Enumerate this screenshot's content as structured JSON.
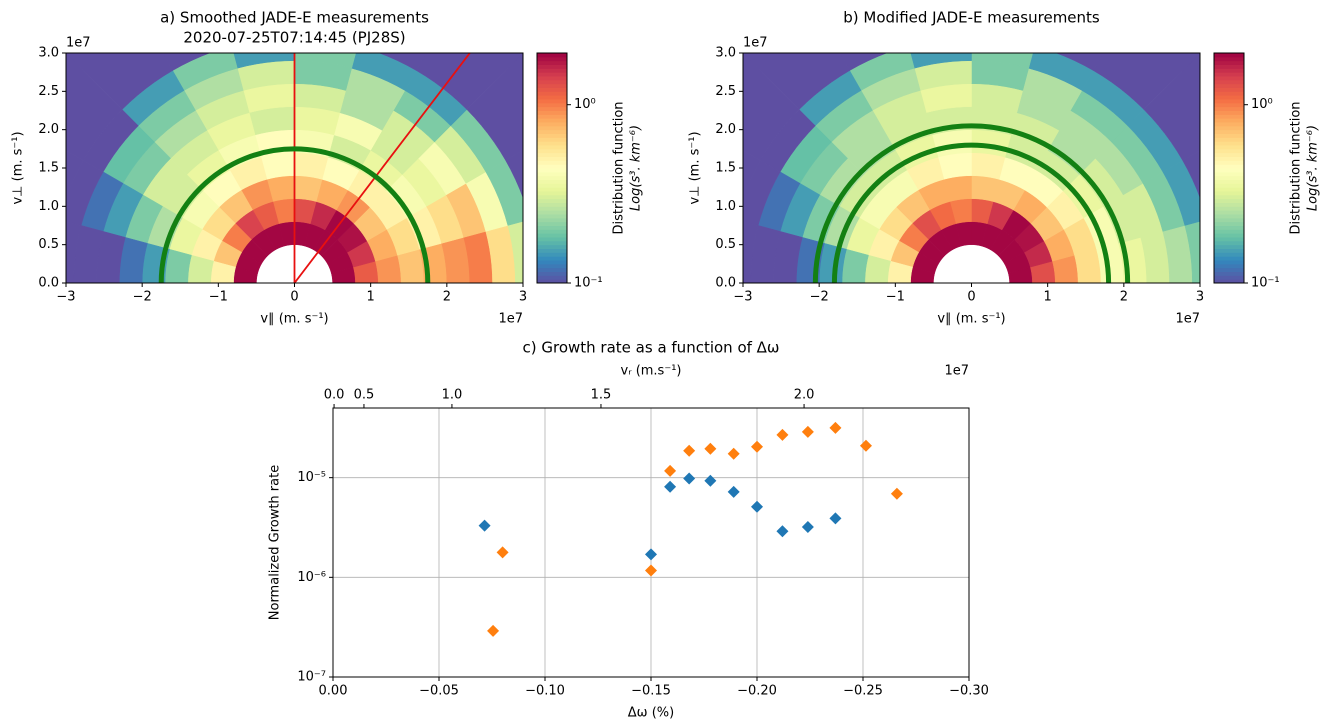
{
  "chart_data": [
    {
      "type": "polar-heatmap",
      "title": "a) Smoothed JADE-E measurements",
      "subtitle": "2020-07-25T07:14:45 (PJ28S)",
      "xlabel": "v∥ (m. s⁻¹)",
      "ylabel": "v⊥ (m. s⁻¹)",
      "x_offset_label": "1e7",
      "y_offset_label": "1e7",
      "xlim": [
        -3,
        3
      ],
      "ylim": [
        0,
        3
      ],
      "xticks": [
        {
          "value": -3,
          "label": "−3"
        },
        {
          "value": -2,
          "label": "−2"
        },
        {
          "value": -1,
          "label": "−1"
        },
        0,
        1,
        2,
        3
      ],
      "yticks": [
        {
          "value": 0,
          "label": "0.0"
        },
        {
          "value": 0.5,
          "label": "0.5"
        },
        {
          "value": 1,
          "label": "1.0"
        },
        {
          "value": 1.5,
          "label": "1.5"
        },
        {
          "value": 2,
          "label": "2.0"
        },
        {
          "value": 2.5,
          "label": "2.5"
        },
        {
          "value": 3,
          "label": "3.0"
        }
      ],
      "r_edges": [
        0.5,
        0.8,
        1.1,
        1.4,
        1.7,
        2.0,
        2.3,
        2.6,
        2.9,
        3.2,
        5
      ],
      "theta_edges": [
        0,
        15,
        30,
        45,
        60,
        75,
        90,
        105,
        120,
        135,
        150,
        165,
        180
      ],
      "cells": [
        [
          1.9,
          1.9,
          1.9,
          1.9,
          1.9,
          1.9,
          1.9,
          1.9,
          1.9,
          1.9,
          1.9,
          1.9
        ],
        [
          1.2,
          1.5,
          1.8,
          1.9,
          1.6,
          1.3,
          1.0,
          1.2,
          1.4,
          1.0,
          0.7,
          0.5
        ],
        [
          0.9,
          0.8,
          0.7,
          0.9,
          0.8,
          0.7,
          0.8,
          0.9,
          0.7,
          0.6,
          0.5,
          0.3
        ],
        [
          0.7,
          0.6,
          0.5,
          0.5,
          0.45,
          0.5,
          0.45,
          0.5,
          0.45,
          0.4,
          0.35,
          0.2
        ],
        [
          0.8,
          0.5,
          0.4,
          0.35,
          0.3,
          0.4,
          0.45,
          0.4,
          0.35,
          0.3,
          0.25,
          0.15
        ],
        [
          0.9,
          0.6,
          0.35,
          0.3,
          0.4,
          0.35,
          0.3,
          0.35,
          0.3,
          0.3,
          0.2,
          0.12
        ],
        [
          1.0,
          0.7,
          0.4,
          0.3,
          0.25,
          0.3,
          0.35,
          0.3,
          0.25,
          0.2,
          0.15,
          0.1
        ],
        [
          0.6,
          0.4,
          0.3,
          0.2,
          0.25,
          0.2,
          0.3,
          0.25,
          0.2,
          0.18,
          0.12,
          0.1
        ],
        [
          0.3,
          0.2,
          0.2,
          0.15,
          0.15,
          0.2,
          0.15,
          0.2,
          0.15,
          0.1,
          0.1,
          0.1
        ],
        [
          0.1,
          0.1,
          0.1,
          0.1,
          0.1,
          0.1,
          0.1,
          0.1,
          0.1,
          0.1,
          0.1,
          0.1
        ]
      ],
      "clim": [
        0.1,
        1.95
      ],
      "colormap": "Spectral_r",
      "colorbar_label": "Distribution function",
      "colorbar_units": "Log(s³. km⁻⁶)",
      "colorbar_ticks": [
        {
          "value": 0.1,
          "label": "10⁻¹"
        },
        {
          "value": 1,
          "label": "10⁰"
        }
      ],
      "circles": [
        1.75
      ],
      "circle_color": "#138013",
      "lines": [
        90,
        52.5
      ],
      "line_color": "#e81010"
    },
    {
      "type": "polar-heatmap",
      "title": "b) Modified JADE-E measurements",
      "xlabel": "v∥ (m. s⁻¹)",
      "ylabel": "v⊥ (m. s⁻¹)",
      "x_offset_label": "1e7",
      "y_offset_label": "1e7",
      "xlim": [
        -3,
        3
      ],
      "ylim": [
        0,
        3
      ],
      "xticks": [
        {
          "value": -3,
          "label": "−3"
        },
        {
          "value": -2,
          "label": "−2"
        },
        {
          "value": -1,
          "label": "−1"
        },
        0,
        1,
        2,
        3
      ],
      "yticks": [
        {
          "value": 0,
          "label": "0.0"
        },
        {
          "value": 0.5,
          "label": "0.5"
        },
        {
          "value": 1,
          "label": "1.0"
        },
        {
          "value": 1.5,
          "label": "1.5"
        },
        {
          "value": 2,
          "label": "2.0"
        },
        {
          "value": 2.5,
          "label": "2.5"
        },
        {
          "value": 3,
          "label": "3.0"
        }
      ],
      "r_edges": [
        0.5,
        0.8,
        1.1,
        1.4,
        1.7,
        2.0,
        2.3,
        2.6,
        2.9,
        3.2,
        5
      ],
      "theta_edges": [
        0,
        15,
        30,
        45,
        60,
        75,
        90,
        105,
        120,
        135,
        150,
        165,
        180
      ],
      "cells": [
        [
          1.9,
          1.9,
          1.9,
          1.9,
          1.9,
          1.9,
          1.9,
          1.9,
          1.9,
          1.9,
          1.9,
          1.9
        ],
        [
          1.3,
          1.6,
          1.8,
          1.9,
          1.5,
          1.2,
          1.0,
          1.1,
          1.3,
          1.0,
          0.7,
          0.5
        ],
        [
          0.9,
          0.8,
          0.7,
          0.8,
          0.7,
          0.7,
          0.8,
          0.8,
          0.7,
          0.6,
          0.5,
          0.3
        ],
        [
          0.6,
          0.6,
          0.5,
          0.45,
          0.45,
          0.5,
          0.45,
          0.5,
          0.4,
          0.4,
          0.35,
          0.2
        ],
        [
          0.4,
          0.4,
          0.35,
          0.3,
          0.3,
          0.35,
          0.4,
          0.35,
          0.3,
          0.3,
          0.25,
          0.15
        ],
        [
          0.35,
          0.3,
          0.3,
          0.25,
          0.3,
          0.3,
          0.3,
          0.3,
          0.25,
          0.25,
          0.2,
          0.12
        ],
        [
          0.3,
          0.3,
          0.25,
          0.25,
          0.25,
          0.3,
          0.35,
          0.3,
          0.25,
          0.2,
          0.15,
          0.1
        ],
        [
          0.25,
          0.2,
          0.2,
          0.2,
          0.25,
          0.2,
          0.3,
          0.25,
          0.2,
          0.18,
          0.12,
          0.1
        ],
        [
          0.2,
          0.15,
          0.15,
          0.15,
          0.15,
          0.2,
          0.15,
          0.2,
          0.15,
          0.1,
          0.1,
          0.1
        ],
        [
          0.1,
          0.1,
          0.1,
          0.1,
          0.1,
          0.1,
          0.1,
          0.1,
          0.1,
          0.1,
          0.1,
          0.1
        ]
      ],
      "clim": [
        0.1,
        1.95
      ],
      "colormap": "Spectral_r",
      "colorbar_label": "Distribution function",
      "colorbar_units": "Log(s³. km⁻⁶)",
      "colorbar_ticks": [
        {
          "value": 0.1,
          "label": "10⁻¹"
        },
        {
          "value": 1,
          "label": "10⁰"
        }
      ],
      "circles": [
        1.8,
        2.05
      ],
      "circle_color": "#138013"
    },
    {
      "type": "scatter",
      "title": "c) Growth rate as a function of Δω",
      "xlabel": "Δω (%)",
      "ylabel": "Normalized Growth rate",
      "x2label": "vᵣ (m.s⁻¹)",
      "x2_offset_label": "1e7",
      "xlim": [
        0,
        -0.3
      ],
      "ylim": [
        1e-07,
        5e-05
      ],
      "yscale": "log",
      "grid": true,
      "xticks": [
        {
          "value": 0,
          "label": "0.00"
        },
        {
          "value": -0.05,
          "label": "−0.05"
        },
        {
          "value": -0.1,
          "label": "−0.10"
        },
        {
          "value": -0.15,
          "label": "−0.15"
        },
        {
          "value": -0.2,
          "label": "−0.20"
        },
        {
          "value": -0.25,
          "label": "−0.25"
        },
        {
          "value": -0.3,
          "label": "−0.30"
        }
      ],
      "yticks": [
        {
          "value": 1e-07,
          "label": "10⁻⁷"
        },
        {
          "value": 1e-06,
          "label": "10⁻⁶"
        },
        {
          "value": 1e-05,
          "label": "10⁻⁵"
        }
      ],
      "x2ticks": [
        {
          "value": 0,
          "label": "0.0"
        },
        {
          "value": 0.5,
          "label": "0.5"
        },
        {
          "value": 1,
          "label": "1.0"
        },
        {
          "value": 1.5,
          "label": "1.5"
        },
        {
          "value": 2,
          "label": "2.0"
        }
      ],
      "x2tick_dw": [
        -0.0005,
        -0.0146,
        -0.0561,
        -0.1264,
        -0.2222
      ],
      "series": [
        {
          "color": "#1f77b4",
          "x": [
            -0.0715,
            -0.15,
            -0.159,
            -0.168,
            -0.178,
            -0.189,
            -0.2,
            -0.212,
            -0.224,
            -0.237
          ],
          "values": [
            3.3e-06,
            1.7e-06,
            8.1e-06,
            9.8e-06,
            9.3e-06,
            7.2e-06,
            5.1e-06,
            2.9e-06,
            3.2e-06,
            3.9e-06
          ]
        },
        {
          "color": "#ff7f0e",
          "x": [
            -0.0755,
            -0.08,
            -0.15,
            -0.159,
            -0.168,
            -0.178,
            -0.189,
            -0.2,
            -0.212,
            -0.224,
            -0.237,
            -0.2514,
            -0.266
          ],
          "values": [
            2.9e-07,
            1.78e-06,
            1.17e-06,
            1.17e-05,
            1.86e-05,
            1.95e-05,
            1.74e-05,
            2.04e-05,
            2.69e-05,
            2.88e-05,
            3.16e-05,
            2.09e-05,
            6.9e-06
          ]
        }
      ]
    }
  ]
}
